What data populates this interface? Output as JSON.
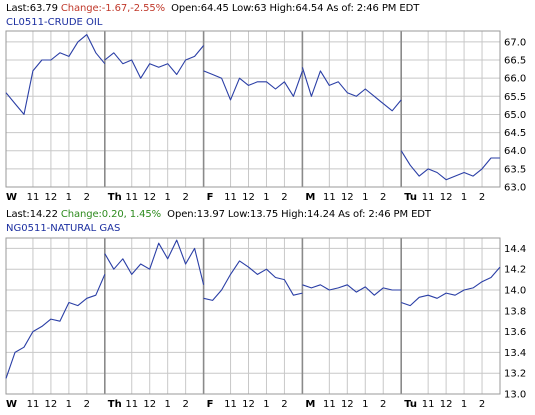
{
  "oil": {
    "last": "Last:63.79",
    "change": "Change:-1.67,-2.55%",
    "open": "Open:64.45",
    "low": "Low:63",
    "high": "High:64.54",
    "as_of": "As of:",
    "time": "2:46 PM EDT",
    "symbol": "CL0511-CRUDE OIL"
  },
  "gas": {
    "last": "Last:14.22",
    "change": "Change:0.20, 1.45%",
    "open": "Open:13.97",
    "low": "Low:13.75",
    "high": "High:14.24",
    "as_of": "As of:",
    "time": "2:46 PM EDT",
    "symbol": "NG0511-NATURAL GAS"
  },
  "colors": {
    "line": "#2b3fa6",
    "grid": "#c8c8c8",
    "frame": "#9a9a9a",
    "day_separator": "#8a8a8a",
    "negative_change": "#c0392b",
    "positive_change": "#2e8b1e",
    "symbol_text": "#1c2fa0"
  },
  "chart_data": [
    {
      "type": "line",
      "title": "CL0511-CRUDE OIL",
      "xlabel": "",
      "ylabel": "",
      "ylim": [
        63.0,
        67.3
      ],
      "yticks": [
        "67.0",
        "66.5",
        "66.0",
        "65.5",
        "65.0",
        "64.5",
        "64.0",
        "63.5",
        "63.0"
      ],
      "grid": true,
      "x_days": [
        "W",
        "Th",
        "F",
        "M",
        "Tu"
      ],
      "x_tick_labels": [
        "W",
        "11",
        "12",
        "1",
        "2",
        "Th",
        "11",
        "12",
        "1",
        "2",
        "F",
        "11",
        "12",
        "1",
        "2",
        "M",
        "11",
        "12",
        "1",
        "2",
        "Tu",
        "11",
        "12",
        "1",
        "2"
      ],
      "segments": [
        {
          "day": "W",
          "x": [
            9.5,
            10,
            10.5,
            11,
            11.5,
            12,
            12.5,
            13,
            13.5,
            14,
            14.5,
            15
          ],
          "y": [
            65.6,
            65.3,
            65.0,
            66.2,
            66.5,
            66.5,
            66.7,
            66.6,
            67.0,
            67.2,
            66.7,
            66.4
          ]
        },
        {
          "day": "Th",
          "x": [
            9.5,
            10,
            10.5,
            11,
            11.5,
            12,
            12.5,
            13,
            13.5,
            14,
            14.5,
            15
          ],
          "y": [
            66.5,
            66.7,
            66.4,
            66.5,
            66.0,
            66.4,
            66.3,
            66.4,
            66.1,
            66.5,
            66.6,
            66.9
          ]
        },
        {
          "day": "F",
          "x": [
            9.5,
            10,
            10.5,
            11,
            11.5,
            12,
            12.5,
            13,
            13.5,
            14,
            14.5,
            15
          ],
          "y": [
            66.2,
            66.1,
            66.0,
            65.4,
            66.0,
            65.8,
            65.9,
            65.9,
            65.7,
            65.9,
            65.5,
            66.2
          ]
        },
        {
          "day": "M",
          "x": [
            9.5,
            10,
            10.5,
            11,
            11.5,
            12,
            12.5,
            13,
            13.5,
            14,
            14.5,
            15
          ],
          "y": [
            66.3,
            65.5,
            66.2,
            65.8,
            65.9,
            65.6,
            65.5,
            65.7,
            65.5,
            65.3,
            65.1,
            65.4
          ]
        },
        {
          "day": "Tu",
          "x": [
            9.5,
            10,
            10.5,
            11,
            11.5,
            12,
            12.5,
            13,
            13.5,
            14,
            14.5,
            15
          ],
          "y": [
            64.0,
            63.6,
            63.3,
            63.5,
            63.4,
            63.2,
            63.3,
            63.4,
            63.3,
            63.5,
            63.8,
            63.8
          ]
        }
      ]
    },
    {
      "type": "line",
      "title": "NG0511-NATURAL GAS",
      "xlabel": "",
      "ylabel": "",
      "ylim": [
        13.0,
        14.5
      ],
      "yticks": [
        "14.4",
        "14.2",
        "14.0",
        "13.8",
        "13.6",
        "13.4",
        "13.2",
        "13.0"
      ],
      "grid": true,
      "x_days": [
        "W",
        "Th",
        "F",
        "M",
        "Tu"
      ],
      "x_tick_labels": [
        "W",
        "11",
        "12",
        "1",
        "2",
        "Th",
        "11",
        "12",
        "1",
        "2",
        "F",
        "11",
        "12",
        "1",
        "2",
        "M",
        "11",
        "12",
        "1",
        "2",
        "Tu",
        "11",
        "12",
        "1",
        "2"
      ],
      "segments": [
        {
          "day": "W",
          "x": [
            9.5,
            10,
            10.5,
            11,
            11.5,
            12,
            12.5,
            13,
            13.5,
            14,
            14.5,
            15
          ],
          "y": [
            13.15,
            13.4,
            13.45,
            13.6,
            13.65,
            13.72,
            13.7,
            13.88,
            13.85,
            13.92,
            13.95,
            14.15
          ]
        },
        {
          "day": "Th",
          "x": [
            9.5,
            10,
            10.5,
            11,
            11.5,
            12,
            12.5,
            13,
            13.5,
            14,
            14.5,
            15
          ],
          "y": [
            14.35,
            14.2,
            14.3,
            14.15,
            14.25,
            14.2,
            14.45,
            14.3,
            14.48,
            14.25,
            14.4,
            14.05
          ]
        },
        {
          "day": "F",
          "x": [
            9.5,
            10,
            10.5,
            11,
            11.5,
            12,
            12.5,
            13,
            13.5,
            14,
            14.5,
            15
          ],
          "y": [
            13.92,
            13.9,
            14.0,
            14.15,
            14.28,
            14.22,
            14.15,
            14.2,
            14.12,
            14.1,
            13.95,
            13.97
          ]
        },
        {
          "day": "M",
          "x": [
            9.5,
            10,
            10.5,
            11,
            11.5,
            12,
            12.5,
            13,
            13.5,
            14,
            14.5,
            15
          ],
          "y": [
            14.05,
            14.02,
            14.05,
            14.0,
            14.02,
            14.05,
            13.98,
            14.03,
            13.95,
            14.02,
            14.0,
            14.0
          ]
        },
        {
          "day": "Tu",
          "x": [
            9.5,
            10,
            10.5,
            11,
            11.5,
            12,
            12.5,
            13,
            13.5,
            14,
            14.5,
            15
          ],
          "y": [
            13.88,
            13.85,
            13.93,
            13.95,
            13.92,
            13.97,
            13.95,
            14.0,
            14.02,
            14.08,
            14.12,
            14.22
          ]
        }
      ]
    }
  ]
}
